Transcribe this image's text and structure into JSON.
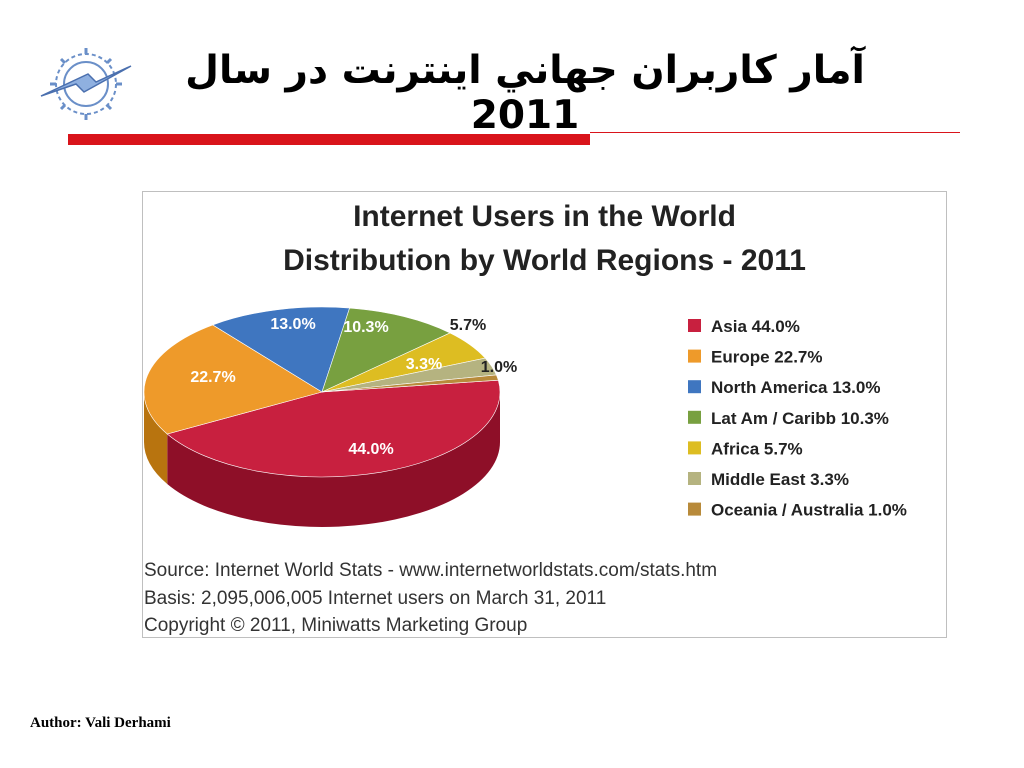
{
  "slide": {
    "title": "آمار كاربران جهاني اينترنت در سال 2011",
    "author": "Author: Vali Derhami"
  },
  "chart_data": {
    "type": "pie",
    "title": "Internet Users in the World",
    "subtitle": "Distribution by World Regions - 2011",
    "categories": [
      "Asia",
      "Europe",
      "North America",
      "Lat Am / Caribb",
      "Africa",
      "Middle East",
      "Oceania / Australia"
    ],
    "values": [
      44.0,
      22.7,
      13.0,
      10.3,
      5.7,
      3.3,
      1.0
    ],
    "data_labels": [
      "44.0%",
      "22.7%",
      "13.0%",
      "10.3%",
      "5.7%",
      "3.3%",
      "1.0%"
    ],
    "legend_labels": [
      "Asia  44.0%",
      "Europe  22.7%",
      "North America  13.0%",
      "Lat Am / Caribb  10.3%",
      "Africa  5.7%",
      "Middle East  3.3%",
      "Oceania / Australia  1.0%"
    ],
    "colors": [
      "#c8203f",
      "#ee9a2a",
      "#3f76c0",
      "#78a040",
      "#ddbd22",
      "#b5b380",
      "#b88a3a"
    ],
    "side_colors": [
      "#8e0f28",
      "#b8740f",
      "#2a548e",
      "#547232",
      "#a88b10",
      "#858358",
      "#8a6526"
    ],
    "legend_position": "right",
    "footer": [
      "Source: Internet World Stats -  www.internetworldstats.com/stats.htm",
      "Basis: 2,095,006,005 Internet users on March 31, 2011",
      "Copyright © 2011, Miniwatts Marketing Group"
    ]
  }
}
